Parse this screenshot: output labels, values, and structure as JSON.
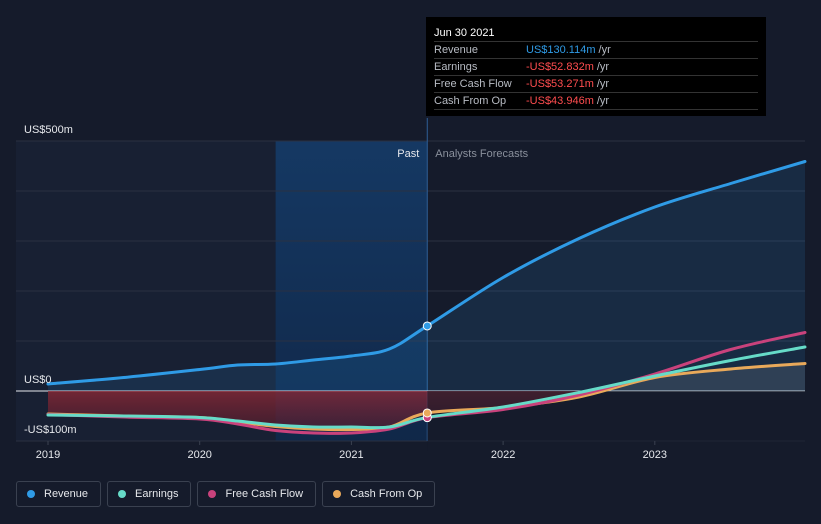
{
  "chart_data": {
    "type": "line",
    "y_axis": {
      "top_label": "US$500m",
      "zero_label": "US$0",
      "bottom_label": "-US$100m",
      "ylim": [
        -100,
        500
      ]
    },
    "x_axis": {
      "ticks": [
        "2019",
        "2020",
        "2021",
        "2022",
        "2023"
      ],
      "xlim": [
        2019.0,
        2023.99
      ]
    },
    "regions": {
      "past_label": "Past",
      "forecast_label": "Analysts Forecasts",
      "divider_x": 2021.5,
      "highlight_start": 2020.5
    },
    "series": [
      {
        "name": "Revenue",
        "color": "#2f9be6",
        "fill": true,
        "points": [
          [
            2019.0,
            14
          ],
          [
            2019.5,
            27
          ],
          [
            2020.0,
            43
          ],
          [
            2020.25,
            52
          ],
          [
            2020.5,
            54
          ],
          [
            2020.75,
            62
          ],
          [
            2021.0,
            70
          ],
          [
            2021.25,
            84
          ],
          [
            2021.5,
            130.114
          ],
          [
            2022.0,
            227
          ],
          [
            2022.5,
            305
          ],
          [
            2023.0,
            368
          ],
          [
            2023.5,
            415
          ],
          [
            2023.99,
            459
          ]
        ]
      },
      {
        "name": "Earnings",
        "color": "#66dbc8",
        "fill": false,
        "points": [
          [
            2019.0,
            -48
          ],
          [
            2019.5,
            -50
          ],
          [
            2020.0,
            -53
          ],
          [
            2020.25,
            -60
          ],
          [
            2020.5,
            -68
          ],
          [
            2020.75,
            -72
          ],
          [
            2021.0,
            -72
          ],
          [
            2021.25,
            -72
          ],
          [
            2021.5,
            -52.832
          ],
          [
            2022.0,
            -32
          ],
          [
            2022.5,
            -3
          ],
          [
            2023.0,
            30
          ],
          [
            2023.5,
            61
          ],
          [
            2023.99,
            88
          ]
        ]
      },
      {
        "name": "Free Cash Flow",
        "color": "#c9427c",
        "fill": false,
        "points": [
          [
            2019.0,
            -47
          ],
          [
            2019.5,
            -52
          ],
          [
            2020.0,
            -56
          ],
          [
            2020.25,
            -66
          ],
          [
            2020.5,
            -79
          ],
          [
            2020.75,
            -84
          ],
          [
            2021.0,
            -84
          ],
          [
            2021.25,
            -76
          ],
          [
            2021.5,
            -53.271
          ],
          [
            2022.0,
            -37
          ],
          [
            2022.5,
            -8
          ],
          [
            2023.0,
            34
          ],
          [
            2023.5,
            83
          ],
          [
            2023.99,
            117
          ]
        ]
      },
      {
        "name": "Cash From Op",
        "color": "#e9a95a",
        "fill": true,
        "points": [
          [
            2019.0,
            -46
          ],
          [
            2019.5,
            -50
          ],
          [
            2020.0,
            -53
          ],
          [
            2020.25,
            -62
          ],
          [
            2020.5,
            -71
          ],
          [
            2020.75,
            -76
          ],
          [
            2021.0,
            -77
          ],
          [
            2021.25,
            -72
          ],
          [
            2021.5,
            -43.946
          ],
          [
            2022.0,
            -33
          ],
          [
            2022.5,
            -12
          ],
          [
            2023.0,
            27
          ],
          [
            2023.5,
            44
          ],
          [
            2023.99,
            55
          ]
        ]
      }
    ],
    "highlight_point_x": 2021.5
  },
  "tooltip": {
    "date": "Jun 30 2021",
    "unit": "/yr",
    "rows": [
      {
        "label": "Revenue",
        "value": "US$130.114m",
        "color": "#2f9be6"
      },
      {
        "label": "Earnings",
        "value": "-US$52.832m",
        "color": "#ff4d4f"
      },
      {
        "label": "Free Cash Flow",
        "value": "-US$53.271m",
        "color": "#ff4d4f"
      },
      {
        "label": "Cash From Op",
        "value": "-US$43.946m",
        "color": "#ff4d4f"
      }
    ]
  },
  "legend": [
    {
      "label": "Revenue",
      "color": "#2f9be6"
    },
    {
      "label": "Earnings",
      "color": "#66dbc8"
    },
    {
      "label": "Free Cash Flow",
      "color": "#c9427c"
    },
    {
      "label": "Cash From Op",
      "color": "#e9a95a"
    }
  ]
}
